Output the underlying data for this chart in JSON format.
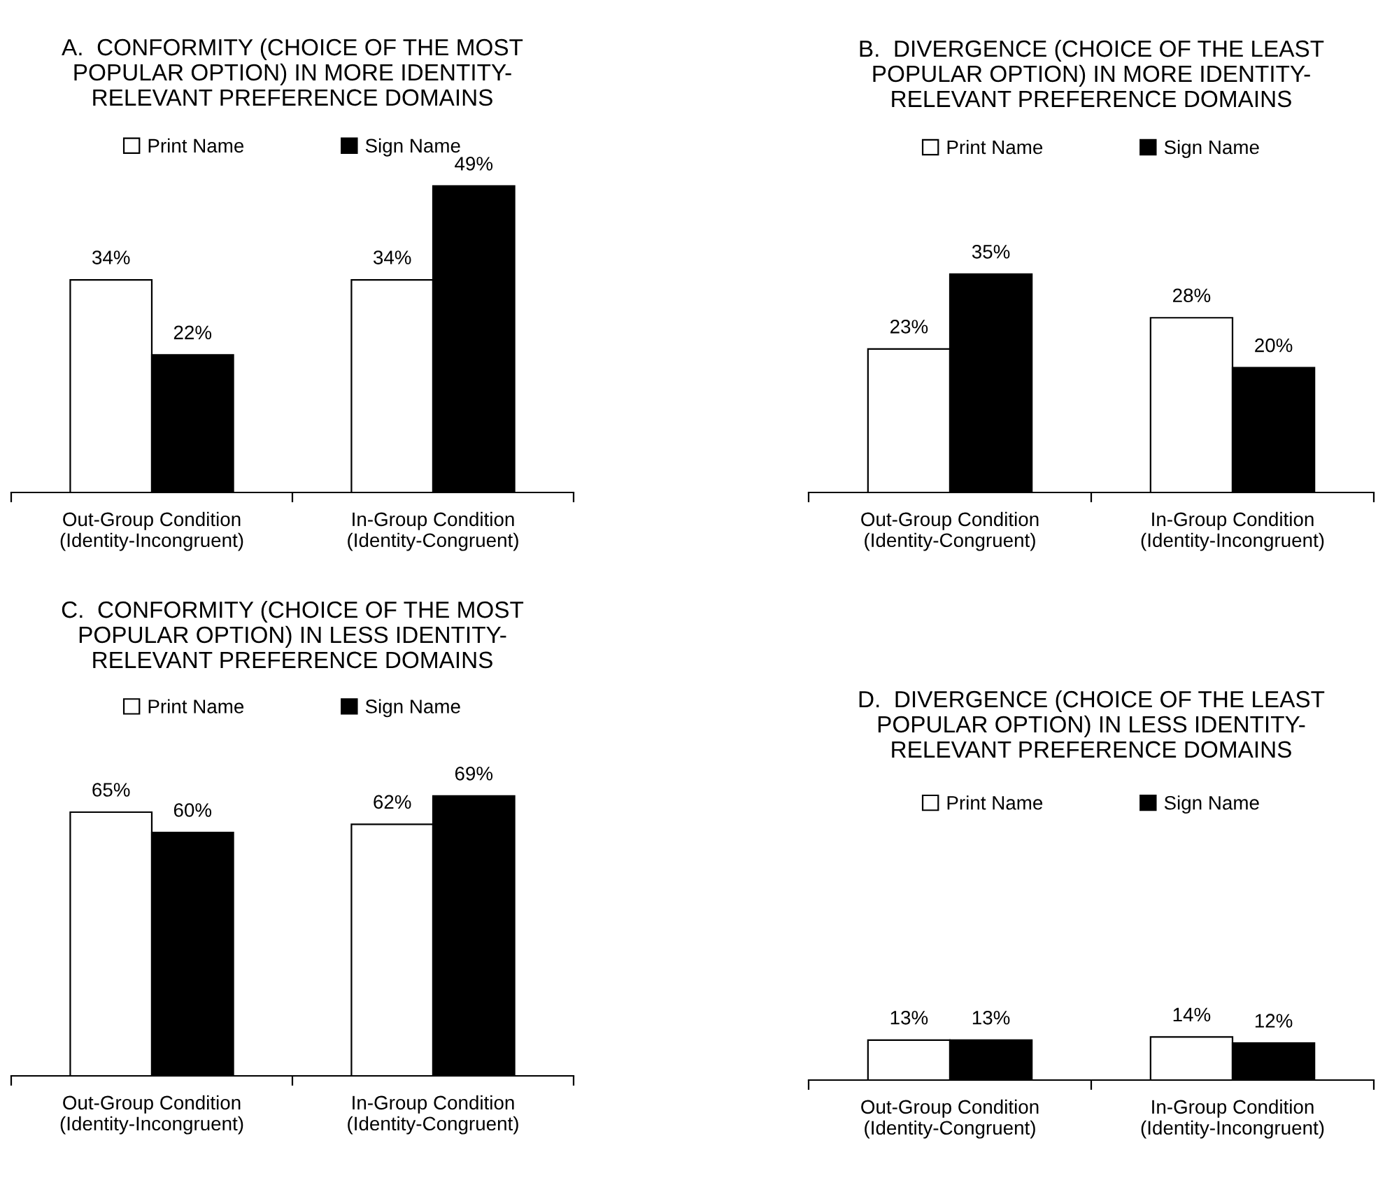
{
  "chart_data": [
    {
      "type": "bar",
      "title": "A.  CONFORMITY (CHOICE OF THE MOST\nPOPULAR OPTION) IN MORE IDENTITY-\nRELEVANT PREFERENCE DOMAINS",
      "categories": [
        "Out-Group Condition\n(Identity-Incongruent)",
        "In-Group Condition\n(Identity-Congruent)"
      ],
      "series": [
        {
          "name": "Print Name",
          "color": "#ffffff",
          "values": [
            34,
            34
          ],
          "value_labels": [
            "34%",
            "34%"
          ]
        },
        {
          "name": "Sign Name",
          "color": "#000000",
          "values": [
            22,
            49
          ],
          "value_labels": [
            "22%",
            "49%"
          ]
        }
      ],
      "tick_labels": "x",
      "legend": "top"
    },
    {
      "type": "bar",
      "title": "B.  DIVERGENCE (CHOICE OF THE LEAST\nPOPULAR OPTION) IN MORE IDENTITY-\nRELEVANT PREFERENCE DOMAINS",
      "categories": [
        "Out-Group Condition\n(Identity-Congruent)",
        "In-Group Condition\n(Identity-Incongruent)"
      ],
      "series": [
        {
          "name": "Print Name",
          "color": "#ffffff",
          "values": [
            23,
            28
          ],
          "value_labels": [
            "23%",
            "28%"
          ]
        },
        {
          "name": "Sign Name",
          "color": "#000000",
          "values": [
            35,
            20
          ],
          "value_labels": [
            "35%",
            "20%"
          ]
        }
      ],
      "tick_labels": "x",
      "legend": "top"
    },
    {
      "type": "bar",
      "title": "C.  CONFORMITY (CHOICE OF THE MOST\nPOPULAR OPTION) IN LESS IDENTITY-\nRELEVANT PREFERENCE DOMAINS",
      "categories": [
        "Out-Group Condition\n(Identity-Incongruent)",
        "In-Group Condition\n(Identity-Congruent)"
      ],
      "series": [
        {
          "name": "Print Name",
          "color": "#ffffff",
          "values": [
            65,
            62
          ],
          "value_labels": [
            "65%",
            "62%"
          ]
        },
        {
          "name": "Sign Name",
          "color": "#000000",
          "values": [
            60,
            69
          ],
          "value_labels": [
            "60%",
            "69%"
          ]
        }
      ],
      "tick_labels": "x",
      "legend": "top"
    },
    {
      "type": "bar",
      "title": "D.  DIVERGENCE (CHOICE OF THE LEAST\nPOPULAR OPTION) IN LESS IDENTITY-\nRELEVANT PREFERENCE DOMAINS",
      "categories": [
        "Out-Group Condition\n(Identity-Congruent)",
        "In-Group Condition\n(Identity-Incongruent)"
      ],
      "series": [
        {
          "name": "Print Name",
          "color": "#ffffff",
          "values": [
            13,
            14
          ],
          "value_labels": [
            "13%",
            "14%"
          ]
        },
        {
          "name": "Sign Name",
          "color": "#000000",
          "values": [
            13,
            12
          ],
          "value_labels": [
            "13%",
            "12%"
          ]
        }
      ],
      "tick_labels": "x",
      "legend": "top"
    }
  ]
}
